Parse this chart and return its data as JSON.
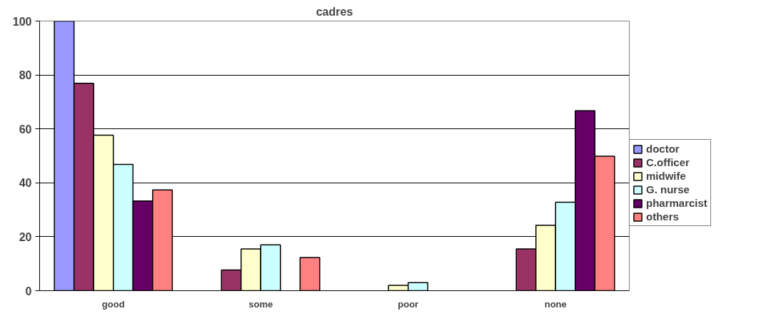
{
  "chart_data": {
    "type": "bar",
    "title": "cadres",
    "categories": [
      "good",
      "some",
      "poor",
      "none"
    ],
    "series": [
      {
        "name": "doctor",
        "color": "#9999ff",
        "values": [
          100,
          0,
          0,
          0
        ]
      },
      {
        "name": "C.officer",
        "color": "#993366",
        "values": [
          76.9,
          7.7,
          0,
          15.5
        ]
      },
      {
        "name": "midwife",
        "color": "#ffffcc",
        "values": [
          57.7,
          15.5,
          2.0,
          24.3
        ]
      },
      {
        "name": "G. nurse",
        "color": "#ccffff",
        "values": [
          46.8,
          17.0,
          3.0,
          32.8
        ]
      },
      {
        "name": "pharmarcist",
        "color": "#660066",
        "values": [
          33.3,
          0,
          0,
          66.7
        ]
      },
      {
        "name": "others",
        "color": "#ff8080",
        "values": [
          37.4,
          12.3,
          0,
          49.9
        ]
      }
    ],
    "ylim": [
      0,
      100
    ],
    "yticks": [
      0,
      20,
      40,
      60,
      80,
      100
    ],
    "grid": "y",
    "legend": "right"
  }
}
